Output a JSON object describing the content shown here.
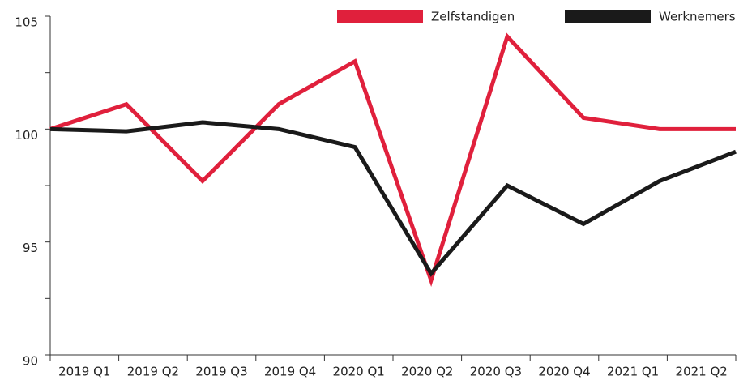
{
  "chart_data": {
    "type": "line",
    "categories": [
      "2019 Q1",
      "2019 Q2",
      "2019 Q3",
      "2019 Q4",
      "2020 Q1",
      "2020 Q2",
      "2020 Q3",
      "2020 Q4",
      "2021 Q1",
      "2021 Q2"
    ],
    "series": [
      {
        "name": "Zelfstandigen",
        "color": "#e0203c",
        "values": [
          100.0,
          101.1,
          97.7,
          101.1,
          103.0,
          93.3,
          104.1,
          100.5,
          100.0,
          100.0
        ]
      },
      {
        "name": "Werknemers",
        "color": "#1a1a1a",
        "values": [
          100.0,
          99.9,
          100.3,
          100.0,
          99.2,
          93.6,
          97.5,
          95.8,
          97.7,
          99.0
        ]
      }
    ],
    "ylim": [
      90,
      105
    ],
    "yticks": [
      90,
      95,
      100,
      105
    ],
    "minor_yticks": [
      92.5,
      97.5,
      102.5
    ],
    "legend": "top-right"
  }
}
